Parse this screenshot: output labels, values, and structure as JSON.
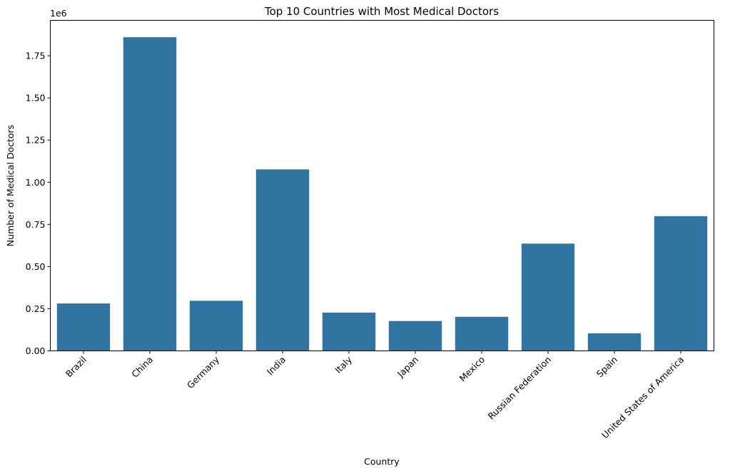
{
  "chart_data": {
    "type": "bar",
    "title": "Top 10 Countries with Most Medical Doctors",
    "xlabel": "Country",
    "ylabel": "Number of Medical Doctors",
    "offset_label": "1e6",
    "categories": [
      "Brazil",
      "China",
      "Germany",
      "India",
      "Italy",
      "Japan",
      "Mexico",
      "Russian Federation",
      "Spain",
      "United States of America"
    ],
    "values": [
      281000,
      1860000,
      297000,
      1076000,
      227000,
      177000,
      202000,
      636000,
      104000,
      799000
    ],
    "ylim": [
      0,
      1960000
    ],
    "yticks": [
      0,
      250000,
      500000,
      750000,
      1000000,
      1250000,
      1500000,
      1750000
    ],
    "ytick_labels": [
      "0.00",
      "0.25",
      "0.50",
      "0.75",
      "1.00",
      "1.25",
      "1.50",
      "1.75"
    ],
    "bar_color": "#3274a1",
    "grid": false,
    "legend": "none"
  }
}
